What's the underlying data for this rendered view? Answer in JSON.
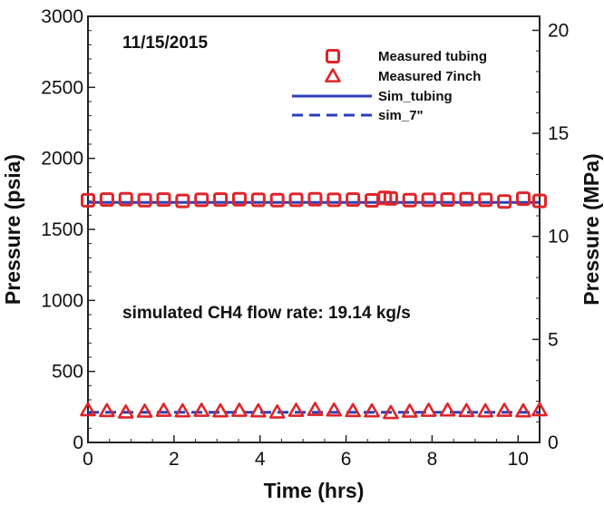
{
  "chart_data": {
    "type": "scatter",
    "date_label": "11/15/2015",
    "annotation": "simulated CH4 flow rate: 19.14 kg/s",
    "xlabel": "Time (hrs)",
    "ylabel": "Pressure (psia)",
    "y2label": "Pressure (MPa)",
    "xlim": [
      0,
      10.5
    ],
    "ylim": [
      0,
      3000
    ],
    "y2lim": [
      0,
      20.68
    ],
    "x_ticks": [
      "0",
      "2",
      "4",
      "6",
      "8",
      "10"
    ],
    "x_tick_values": [
      0,
      2,
      4,
      6,
      8,
      10
    ],
    "y_ticks": [
      "0",
      "500",
      "1000",
      "1500",
      "2000",
      "2500",
      "3000"
    ],
    "y_tick_values": [
      0,
      500,
      1000,
      1500,
      2000,
      2500,
      3000
    ],
    "y2_ticks": [
      "0",
      "5",
      "10",
      "15",
      "20"
    ],
    "y2_tick_values": [
      0,
      5,
      10,
      15,
      20
    ],
    "grid": false,
    "legend_position": "top-right",
    "series": [
      {
        "name": "Measured tubing",
        "marker": "square",
        "color": "#e0242a",
        "x": [
          0.0,
          0.44,
          0.88,
          1.32,
          1.76,
          2.2,
          2.64,
          3.08,
          3.52,
          3.96,
          4.4,
          4.84,
          5.28,
          5.72,
          6.16,
          6.6,
          6.9,
          7.04,
          7.48,
          7.92,
          8.36,
          8.8,
          9.24,
          9.68,
          10.12,
          10.5
        ],
        "y": [
          1705,
          1710,
          1712,
          1706,
          1710,
          1700,
          1708,
          1710,
          1712,
          1708,
          1706,
          1708,
          1712,
          1708,
          1710,
          1704,
          1722,
          1718,
          1706,
          1708,
          1710,
          1712,
          1708,
          1696,
          1716,
          1700
        ]
      },
      {
        "name": "Measured 7inch",
        "marker": "triangle",
        "color": "#e0242a",
        "x": [
          0.0,
          0.44,
          0.88,
          1.32,
          1.76,
          2.2,
          2.64,
          3.08,
          3.52,
          3.96,
          4.4,
          4.84,
          5.28,
          5.72,
          6.16,
          6.6,
          7.04,
          7.48,
          7.92,
          8.36,
          8.8,
          9.24,
          9.68,
          10.12,
          10.5
        ],
        "y": [
          228,
          222,
          212,
          218,
          224,
          220,
          224,
          220,
          224,
          220,
          212,
          224,
          230,
          226,
          222,
          220,
          208,
          218,
          224,
          226,
          222,
          220,
          224,
          220,
          228
        ]
      },
      {
        "name": "Sim_tubing",
        "line": "solid",
        "color": "#2b3fb8",
        "x": [
          0,
          10.5
        ],
        "y": [
          1690,
          1690
        ]
      },
      {
        "name": "sim_7\"",
        "line": "dashed",
        "color": "#2b3fb8",
        "x": [
          0,
          10.5
        ],
        "y": [
          212,
          212
        ]
      }
    ]
  }
}
